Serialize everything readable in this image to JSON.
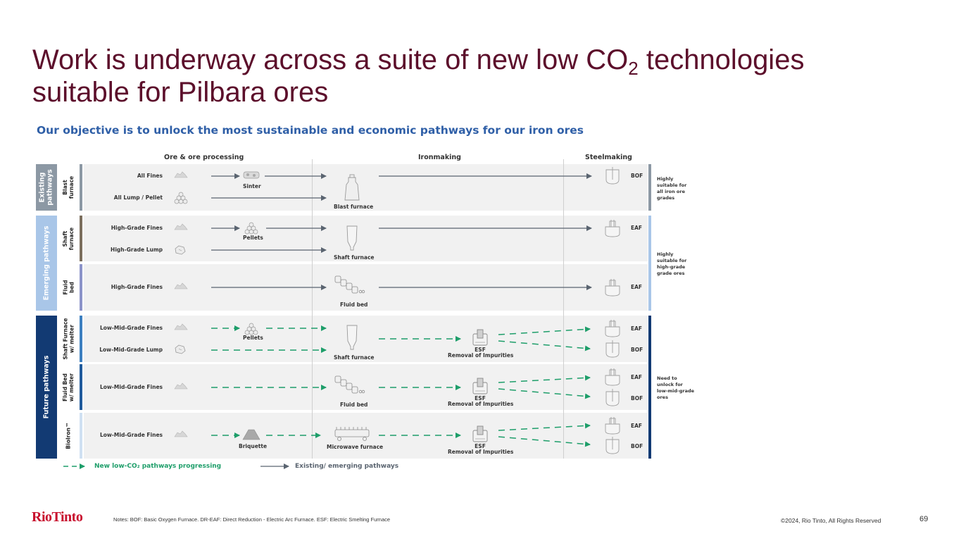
{
  "slide": {
    "title_pre": "Work is underway across a suite of new low CO",
    "title_sub": "2",
    "title_post": " technologies",
    "title_line2": "suitable for Pilbara ores",
    "subtitle": "Our objective is to unlock the most sustainable and economic pathways for our iron ores"
  },
  "columns": [
    "Ore & ore processing",
    "Ironmaking",
    "Steelmaking"
  ],
  "groups": [
    {
      "label_line1": "Existing",
      "label_line2": "pathways",
      "color": "#8c98a4"
    },
    {
      "label_line1": "Emerging pathways",
      "label_line2": "",
      "color": "#a9c6e8"
    },
    {
      "label_line1": "Future pathways",
      "label_line2": "",
      "color": "#123a73"
    }
  ],
  "subgroups": [
    {
      "line1": "Blast",
      "line2": "furnace",
      "color": "#8c98a4"
    },
    {
      "line1": "Shaft",
      "line2": "furnace",
      "color": "#7b6e5d"
    },
    {
      "line1": "Fluid",
      "line2": "bed",
      "color": "#8b93c9"
    },
    {
      "line1": "Shaft Furnace",
      "line2": "w/ melter",
      "color": "#3c7fc0"
    },
    {
      "line1": "Fluid Bed",
      "line2": "w/ melter",
      "color": "#1f5a9c"
    },
    {
      "line1": "BioIron™",
      "line2": "",
      "color": "#cfe0f2"
    }
  ],
  "ores": [
    "All Fines",
    "All Lump / Pellet",
    "High-Grade Fines",
    "High-Grade Lump",
    "High-Grade Fines",
    "Low-Mid-Grade Fines",
    "Low-Mid-Grade Lump",
    "Low-Mid-Grade Fines",
    "Low-Mid-Grade Fines"
  ],
  "processing": [
    "Sinter",
    "Pellets",
    "Pellets",
    "Briquette"
  ],
  "ironmaking": [
    "Blast furnace",
    "Shaft furnace",
    "Fluid bed",
    "Shaft furnace",
    "Fluid bed",
    "Microwave furnace"
  ],
  "esf": {
    "name": "ESF",
    "desc": "Removal of Impurities"
  },
  "steel": [
    "BOF",
    "EAF",
    "EAF",
    "EAF",
    "BOF",
    "EAF",
    "BOF",
    "EAF",
    "BOF"
  ],
  "side_notes": [
    {
      "lines": [
        "Highly",
        "suitable for",
        "all iron ore",
        "grades"
      ]
    },
    {
      "lines": [
        "Highly",
        "suitable for",
        "high-grade",
        "grade ores"
      ]
    },
    {
      "lines": [
        "Need to",
        "unlock for",
        "low-mid-grade",
        "ores"
      ]
    }
  ],
  "legend": {
    "new": "New low-CO₂ pathways progressing",
    "existing": "Existing/ emerging pathways",
    "new_color": "#1e9e6a",
    "existing_color": "#5a6470"
  },
  "footer": {
    "logo": "RioTinto",
    "notes": "Notes: BOF: Basic Oxygen Furnace. DR-EAF: Direct Reduction - Electric Arc Furnace. ESF: Electric Smelting Furnace",
    "copyright": "©2024, Rio Tinto, All Rights Reserved",
    "page": "69"
  }
}
